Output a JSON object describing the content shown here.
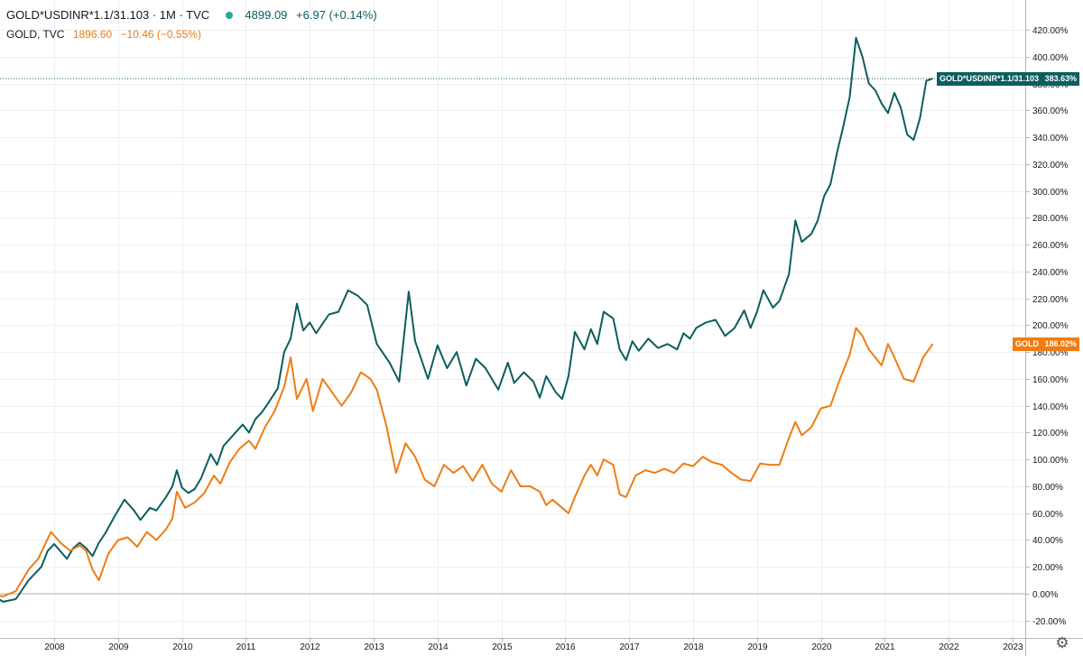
{
  "legend": {
    "primary": {
      "symbol": "GOLD*USDINR*1.1/31.103 · 1M · TVC",
      "value": "4899.09",
      "change": "+6.97 (+0.14%)",
      "color": "#0b5e5e"
    },
    "secondary": {
      "symbol": "GOLD, TVC",
      "value": "1896.60",
      "change": "−10.46 (−0.55%)",
      "color": "#f07c12"
    }
  },
  "price_tags": {
    "primary": {
      "name": "GOLD*USDINR*1.1/31.103",
      "value": "383.63%"
    },
    "secondary": {
      "name": "GOLD",
      "value": "186.02%"
    }
  },
  "settings_icon": "gear-icon",
  "chart_data": {
    "type": "line",
    "title": "",
    "xlabel": "",
    "ylabel": "",
    "y_unit": "%",
    "ylim": [
      -25,
      425
    ],
    "y_ticks": [
      "-20.00%",
      "0.00%",
      "20.00%",
      "40.00%",
      "60.00%",
      "80.00%",
      "100.00%",
      "120.00%",
      "140.00%",
      "160.00%",
      "180.00%",
      "200.00%",
      "220.00%",
      "240.00%",
      "260.00%",
      "280.00%",
      "300.00%",
      "320.00%",
      "340.00%",
      "360.00%",
      "380.00%",
      "400.00%",
      "420.00%"
    ],
    "x_ticks": [
      "2008",
      "2009",
      "2010",
      "2011",
      "2012",
      "2013",
      "2014",
      "2015",
      "2016",
      "2017",
      "2018",
      "2019",
      "2020",
      "2021",
      "2022",
      "2023"
    ],
    "grid": true,
    "series": [
      {
        "name": "GOLD*USDINR*1.1/31.103",
        "color": "#0b5e5e",
        "points": [
          [
            2007.0,
            0
          ],
          [
            2007.2,
            -6
          ],
          [
            2007.4,
            -4
          ],
          [
            2007.6,
            10
          ],
          [
            2007.8,
            20
          ],
          [
            2007.9,
            32
          ],
          [
            2008.0,
            37
          ],
          [
            2008.2,
            26
          ],
          [
            2008.3,
            34
          ],
          [
            2008.4,
            38
          ],
          [
            2008.5,
            34
          ],
          [
            2008.6,
            28
          ],
          [
            2008.7,
            38
          ],
          [
            2008.8,
            45
          ],
          [
            2008.95,
            58
          ],
          [
            2009.1,
            70
          ],
          [
            2009.25,
            62
          ],
          [
            2009.35,
            55
          ],
          [
            2009.5,
            64
          ],
          [
            2009.6,
            62
          ],
          [
            2009.75,
            72
          ],
          [
            2009.85,
            80
          ],
          [
            2009.92,
            92
          ],
          [
            2010.0,
            79
          ],
          [
            2010.1,
            75
          ],
          [
            2010.2,
            78
          ],
          [
            2010.3,
            86
          ],
          [
            2010.45,
            104
          ],
          [
            2010.55,
            96
          ],
          [
            2010.65,
            110
          ],
          [
            2010.8,
            118
          ],
          [
            2010.95,
            126
          ],
          [
            2011.05,
            120
          ],
          [
            2011.15,
            130
          ],
          [
            2011.25,
            135
          ],
          [
            2011.35,
            142
          ],
          [
            2011.5,
            153
          ],
          [
            2011.6,
            180
          ],
          [
            2011.7,
            190
          ],
          [
            2011.8,
            216
          ],
          [
            2011.9,
            196
          ],
          [
            2012.0,
            202
          ],
          [
            2012.1,
            194
          ],
          [
            2012.3,
            208
          ],
          [
            2012.45,
            210
          ],
          [
            2012.6,
            226
          ],
          [
            2012.75,
            222
          ],
          [
            2012.9,
            215
          ],
          [
            2013.05,
            186
          ],
          [
            2013.25,
            172
          ],
          [
            2013.4,
            158
          ],
          [
            2013.55,
            225
          ],
          [
            2013.65,
            188
          ],
          [
            2013.85,
            160
          ],
          [
            2014.0,
            185
          ],
          [
            2014.15,
            168
          ],
          [
            2014.3,
            180
          ],
          [
            2014.45,
            155
          ],
          [
            2014.6,
            175
          ],
          [
            2014.75,
            168
          ],
          [
            2014.95,
            152
          ],
          [
            2015.1,
            172
          ],
          [
            2015.2,
            157
          ],
          [
            2015.35,
            165
          ],
          [
            2015.5,
            158
          ],
          [
            2015.6,
            146
          ],
          [
            2015.7,
            162
          ],
          [
            2015.85,
            150
          ],
          [
            2015.95,
            145
          ],
          [
            2016.05,
            162
          ],
          [
            2016.15,
            195
          ],
          [
            2016.3,
            182
          ],
          [
            2016.4,
            197
          ],
          [
            2016.5,
            186
          ],
          [
            2016.6,
            210
          ],
          [
            2016.75,
            205
          ],
          [
            2016.85,
            182
          ],
          [
            2016.95,
            174
          ],
          [
            2017.05,
            188
          ],
          [
            2017.15,
            181
          ],
          [
            2017.3,
            190
          ],
          [
            2017.45,
            183
          ],
          [
            2017.6,
            186
          ],
          [
            2017.75,
            182
          ],
          [
            2017.85,
            194
          ],
          [
            2017.95,
            190
          ],
          [
            2018.05,
            198
          ],
          [
            2018.2,
            202
          ],
          [
            2018.35,
            204
          ],
          [
            2018.5,
            192
          ],
          [
            2018.65,
            198
          ],
          [
            2018.8,
            211
          ],
          [
            2018.9,
            198
          ],
          [
            2019.0,
            210
          ],
          [
            2019.1,
            226
          ],
          [
            2019.25,
            213
          ],
          [
            2019.35,
            218
          ],
          [
            2019.5,
            238
          ],
          [
            2019.6,
            278
          ],
          [
            2019.7,
            262
          ],
          [
            2019.85,
            268
          ],
          [
            2019.95,
            278
          ],
          [
            2020.05,
            296
          ],
          [
            2020.15,
            305
          ],
          [
            2020.25,
            328
          ],
          [
            2020.35,
            348
          ],
          [
            2020.45,
            370
          ],
          [
            2020.55,
            414
          ],
          [
            2020.65,
            400
          ],
          [
            2020.75,
            380
          ],
          [
            2020.85,
            375
          ],
          [
            2020.95,
            365
          ],
          [
            2021.05,
            358
          ],
          [
            2021.15,
            373
          ],
          [
            2021.25,
            362
          ],
          [
            2021.35,
            342
          ],
          [
            2021.45,
            338
          ],
          [
            2021.55,
            354
          ],
          [
            2021.65,
            382
          ],
          [
            2021.75,
            383.63
          ]
        ]
      },
      {
        "name": "GOLD",
        "color": "#f07c12",
        "points": [
          [
            2007.0,
            0
          ],
          [
            2007.2,
            -2
          ],
          [
            2007.4,
            2
          ],
          [
            2007.6,
            18
          ],
          [
            2007.75,
            26
          ],
          [
            2007.95,
            46
          ],
          [
            2008.1,
            38
          ],
          [
            2008.25,
            32
          ],
          [
            2008.4,
            36
          ],
          [
            2008.5,
            32
          ],
          [
            2008.6,
            18
          ],
          [
            2008.7,
            10
          ],
          [
            2008.85,
            30
          ],
          [
            2009.0,
            40
          ],
          [
            2009.15,
            42
          ],
          [
            2009.3,
            35
          ],
          [
            2009.45,
            46
          ],
          [
            2009.6,
            40
          ],
          [
            2009.75,
            48
          ],
          [
            2009.85,
            56
          ],
          [
            2009.92,
            76
          ],
          [
            2010.05,
            64
          ],
          [
            2010.2,
            68
          ],
          [
            2010.35,
            75
          ],
          [
            2010.5,
            88
          ],
          [
            2010.6,
            82
          ],
          [
            2010.75,
            98
          ],
          [
            2010.9,
            108
          ],
          [
            2011.05,
            114
          ],
          [
            2011.15,
            108
          ],
          [
            2011.3,
            124
          ],
          [
            2011.45,
            136
          ],
          [
            2011.6,
            154
          ],
          [
            2011.7,
            176
          ],
          [
            2011.8,
            145
          ],
          [
            2011.95,
            160
          ],
          [
            2012.05,
            136
          ],
          [
            2012.2,
            160
          ],
          [
            2012.35,
            150
          ],
          [
            2012.5,
            140
          ],
          [
            2012.65,
            150
          ],
          [
            2012.8,
            165
          ],
          [
            2012.95,
            160
          ],
          [
            2013.05,
            152
          ],
          [
            2013.2,
            125
          ],
          [
            2013.35,
            90
          ],
          [
            2013.5,
            112
          ],
          [
            2013.65,
            102
          ],
          [
            2013.8,
            85
          ],
          [
            2013.95,
            80
          ],
          [
            2014.1,
            96
          ],
          [
            2014.25,
            90
          ],
          [
            2014.4,
            95
          ],
          [
            2014.55,
            84
          ],
          [
            2014.7,
            96
          ],
          [
            2014.85,
            82
          ],
          [
            2015.0,
            76
          ],
          [
            2015.15,
            92
          ],
          [
            2015.3,
            80
          ],
          [
            2015.45,
            80
          ],
          [
            2015.6,
            76
          ],
          [
            2015.7,
            66
          ],
          [
            2015.8,
            70
          ],
          [
            2015.95,
            64
          ],
          [
            2016.05,
            60
          ],
          [
            2016.15,
            72
          ],
          [
            2016.3,
            88
          ],
          [
            2016.4,
            96
          ],
          [
            2016.5,
            88
          ],
          [
            2016.6,
            100
          ],
          [
            2016.75,
            96
          ],
          [
            2016.85,
            74
          ],
          [
            2016.95,
            72
          ],
          [
            2017.1,
            88
          ],
          [
            2017.25,
            92
          ],
          [
            2017.4,
            90
          ],
          [
            2017.55,
            93
          ],
          [
            2017.7,
            90
          ],
          [
            2017.85,
            97
          ],
          [
            2018.0,
            95
          ],
          [
            2018.15,
            102
          ],
          [
            2018.3,
            98
          ],
          [
            2018.45,
            96
          ],
          [
            2018.6,
            90
          ],
          [
            2018.75,
            85
          ],
          [
            2018.9,
            84
          ],
          [
            2019.05,
            97
          ],
          [
            2019.2,
            96
          ],
          [
            2019.35,
            96
          ],
          [
            2019.5,
            116
          ],
          [
            2019.6,
            128
          ],
          [
            2019.7,
            118
          ],
          [
            2019.85,
            124
          ],
          [
            2020.0,
            138
          ],
          [
            2020.15,
            140
          ],
          [
            2020.3,
            160
          ],
          [
            2020.45,
            178
          ],
          [
            2020.55,
            198
          ],
          [
            2020.65,
            192
          ],
          [
            2020.75,
            182
          ],
          [
            2020.85,
            176
          ],
          [
            2020.95,
            170
          ],
          [
            2021.05,
            186
          ],
          [
            2021.15,
            176
          ],
          [
            2021.3,
            160
          ],
          [
            2021.45,
            158
          ],
          [
            2021.6,
            176
          ],
          [
            2021.75,
            186.02
          ]
        ]
      }
    ]
  }
}
